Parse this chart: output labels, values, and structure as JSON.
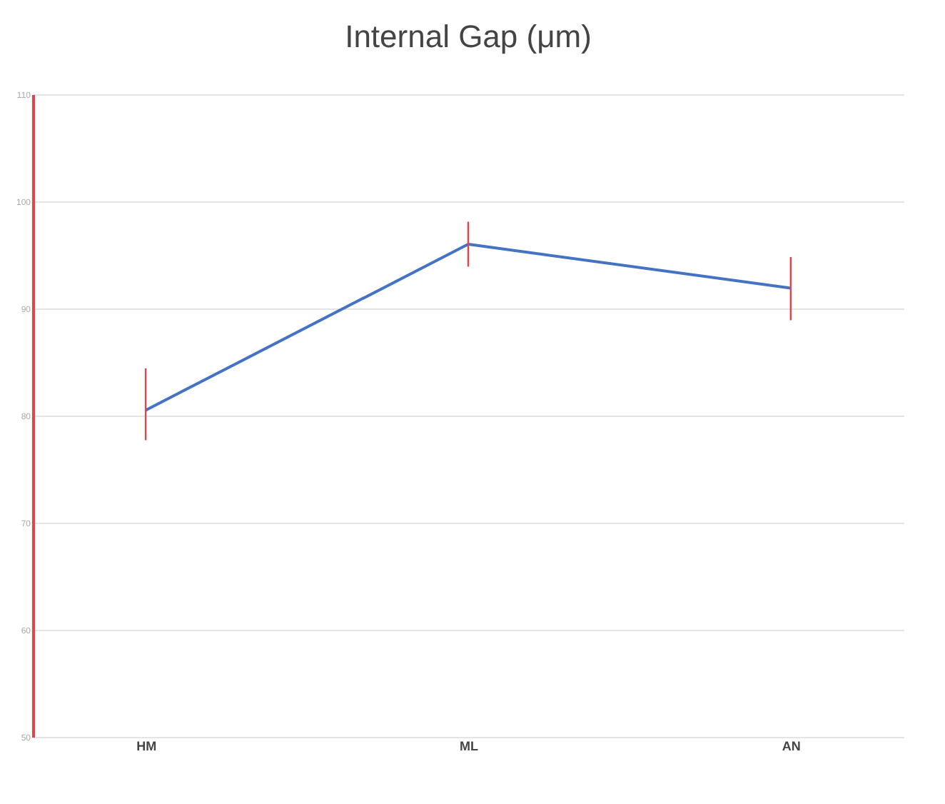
{
  "chart_data": {
    "type": "line",
    "title": "Internal Gap (μm)",
    "categories": [
      "HM",
      "ML",
      "AN"
    ],
    "series": [
      {
        "color": "#4472c4",
        "values": [
          80.5,
          96,
          91.9
        ],
        "errors": [
          [
            77.7,
            84.4
          ],
          [
            93.9,
            98.1
          ],
          [
            88.9,
            94.8
          ]
        ]
      }
    ],
    "ylim": [
      50,
      110
    ],
    "yticks": [
      50,
      60,
      70,
      80,
      90,
      100,
      110
    ],
    "grid": "y",
    "marker": "none",
    "line_style": "solid"
  }
}
